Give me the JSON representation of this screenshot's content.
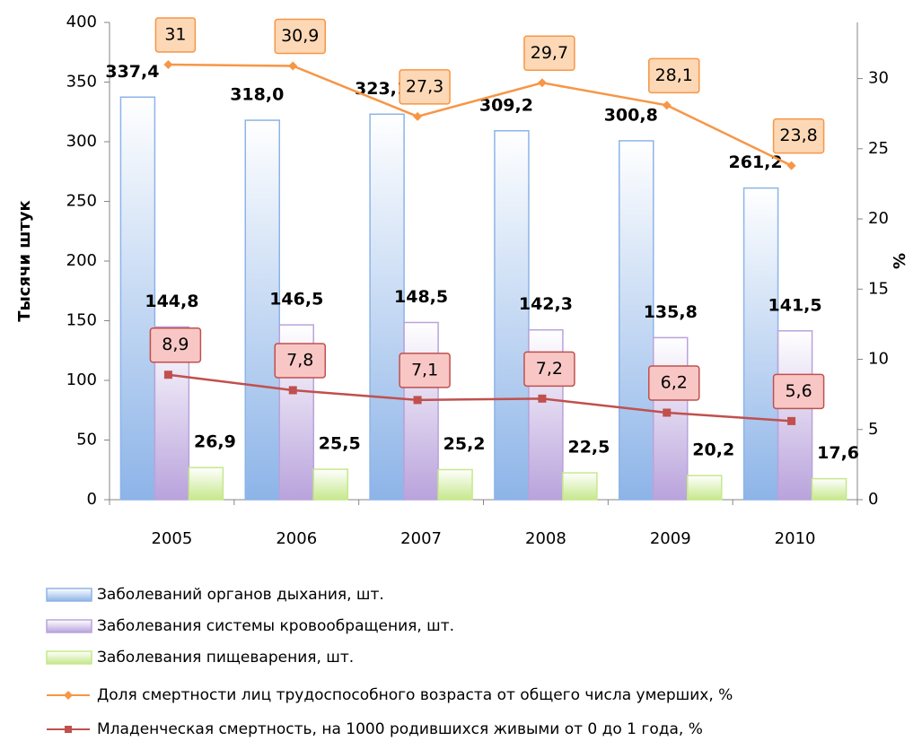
{
  "chart_data": {
    "type": "bar",
    "categories": [
      "2005",
      "2006",
      "2007",
      "2008",
      "2009",
      "2010"
    ],
    "ylabel": "Тысячи штук",
    "y2label": "%",
    "ylim": [
      0,
      400
    ],
    "yticks": [
      0,
      50,
      100,
      150,
      200,
      250,
      300,
      350,
      400
    ],
    "y2lim": [
      0,
      34
    ],
    "y2ticks": [
      0,
      5,
      10,
      15,
      20,
      25,
      30
    ],
    "series": [
      {
        "name": "Заболеваний органов дыхания, шт.",
        "type": "bar",
        "color": "#8db4e8",
        "values": [
          337.4,
          318.0,
          323.1,
          309.2,
          300.8,
          261.2
        ],
        "value_labels": [
          "337,4",
          "318,0",
          "323,1",
          "309,2",
          "300,8",
          "261,2"
        ]
      },
      {
        "name": "Заболевания системы кровообращения, шт.",
        "type": "bar",
        "color": "#b9a3dc",
        "values": [
          144.8,
          146.5,
          148.5,
          142.3,
          135.8,
          141.5
        ],
        "value_labels": [
          "144,8",
          "146,5",
          "148,5",
          "142,3",
          "135,8",
          "141,5"
        ]
      },
      {
        "name": "Заболевания пищеварения, шт.",
        "type": "bar",
        "color": "#c6e88c",
        "values": [
          26.9,
          25.5,
          25.2,
          22.5,
          20.2,
          17.6
        ],
        "value_labels": [
          "26,9",
          "25,5",
          "25,2",
          "22,5",
          "20,2",
          "17,6"
        ]
      },
      {
        "name": "Доля смертности лиц трудоспособного возраста от общего числа умерших, %",
        "type": "line",
        "axis": "y2",
        "color": "#f79646",
        "marker": "diamond",
        "values": [
          31,
          30.9,
          27.3,
          29.7,
          28.1,
          23.8
        ],
        "value_labels": [
          "31",
          "30,9",
          "27,3",
          "29,7",
          "28,1",
          "23,8"
        ]
      },
      {
        "name": "Младенческая смертность, на 1000 родившихся живыми от 0 до 1 года, %",
        "type": "line",
        "axis": "y2",
        "color": "#c0504d",
        "marker": "square",
        "values": [
          8.9,
          7.8,
          7.1,
          7.2,
          6.2,
          5.6
        ],
        "value_labels": [
          "8,9",
          "7,8",
          "7,1",
          "7,2",
          "6,2",
          "5,6"
        ]
      }
    ]
  }
}
